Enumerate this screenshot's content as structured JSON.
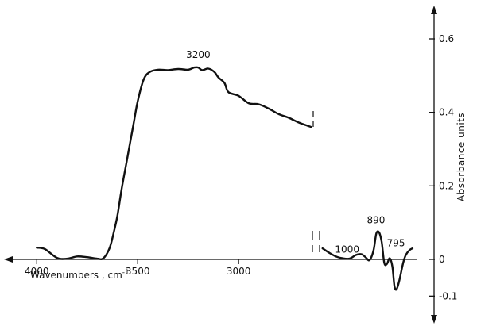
{
  "chart_data": {
    "type": "line",
    "title": "",
    "xlabel": "Wavenumbers , cm",
    "xlabel_sup": "-1",
    "ylabel": "Absorbance   units",
    "x_ticks": [
      {
        "value": 4000,
        "label": "4000"
      },
      {
        "value": 3500,
        "label": "3500"
      },
      {
        "value": 3000,
        "label": "3000"
      }
    ],
    "y_ticks": [
      {
        "value": 0.6,
        "label": "0.6"
      },
      {
        "value": 0.4,
        "label": "0.4"
      },
      {
        "value": 0.2,
        "label": "0.2"
      },
      {
        "value": 0,
        "label": "0"
      },
      {
        "value": -0.1,
        "label": "-0.1"
      }
    ],
    "ylim": [
      -0.14,
      0.66
    ],
    "axis_break": true,
    "segments": [
      {
        "name": "high",
        "xlim": [
          4080,
          2630
        ],
        "x": [
          4000,
          3960,
          3900,
          3850,
          3800,
          3750,
          3700,
          3670,
          3640,
          3620,
          3600,
          3580,
          3550,
          3520,
          3500,
          3470,
          3440,
          3400,
          3350,
          3300,
          3250,
          3220,
          3200,
          3180,
          3150,
          3120,
          3100,
          3070,
          3050,
          3000,
          2950,
          2900,
          2850,
          2800,
          2750,
          2700,
          2650,
          2640
        ],
        "y": [
          0.032,
          0.028,
          0.004,
          0.002,
          0.008,
          0.006,
          0.002,
          0.003,
          0.03,
          0.07,
          0.12,
          0.19,
          0.28,
          0.37,
          0.43,
          0.49,
          0.51,
          0.516,
          0.515,
          0.518,
          0.516,
          0.522,
          0.522,
          0.515,
          0.519,
          0.51,
          0.495,
          0.48,
          0.455,
          0.445,
          0.425,
          0.422,
          0.41,
          0.395,
          0.385,
          0.372,
          0.362,
          0.36
        ]
      },
      {
        "name": "low",
        "xlim": [
          1310,
          600
        ],
        "x": [
          1300,
          1250,
          1200,
          1150,
          1100,
          1050,
          1010,
          980,
          950,
          920,
          900,
          880,
          860,
          840,
          820,
          800,
          780,
          765,
          750,
          730,
          700,
          680,
          650,
          630
        ],
        "y": [
          0.03,
          0.018,
          0.008,
          0.003,
          0.002,
          0.012,
          0.014,
          0.006,
          -0.002,
          0.025,
          0.07,
          0.074,
          0.048,
          -0.01,
          -0.012,
          0.003,
          -0.02,
          -0.072,
          -0.082,
          -0.06,
          -0.01,
          0.012,
          0.026,
          0.03
        ]
      }
    ],
    "annotations": [
      {
        "text": "3200",
        "x": 3200,
        "y": 0.522,
        "segment": 0
      },
      {
        "text": "890",
        "x": 890,
        "y": 0.074,
        "segment": 1
      },
      {
        "text": "1000",
        "x": 1010,
        "y": 0.014,
        "segment": 1
      },
      {
        "text": "795",
        "x": 795,
        "y": 0.003,
        "segment": 1
      }
    ]
  }
}
